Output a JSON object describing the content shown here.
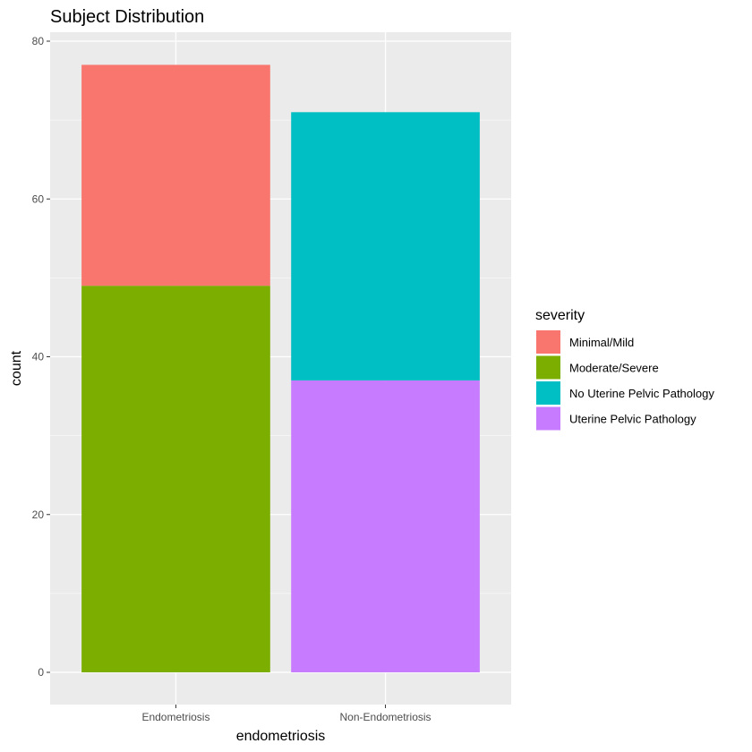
{
  "chart_data": {
    "type": "bar",
    "stacked": true,
    "title": "Subject Distribution",
    "xlabel": "endometriosis",
    "ylabel": "count",
    "categories": [
      "Endometriosis",
      "Non-Endometriosis"
    ],
    "ylim": [
      0,
      80
    ],
    "yticks": [
      0,
      20,
      40,
      60,
      80
    ],
    "grid": true,
    "legend": {
      "title": "severity",
      "placement": "right",
      "entries": [
        "Minimal/Mild",
        "Moderate/Severe",
        "No Uterine Pelvic Pathology",
        "Uterine Pelvic Pathology"
      ]
    },
    "series": [
      {
        "name": "Minimal/Mild",
        "color": "#F8766D",
        "values": [
          28,
          0
        ]
      },
      {
        "name": "Moderate/Severe",
        "color": "#7CAE00",
        "values": [
          49,
          0
        ]
      },
      {
        "name": "No Uterine Pelvic Pathology",
        "color": "#00BFC4",
        "values": [
          0,
          34
        ]
      },
      {
        "name": "Uterine Pelvic Pathology",
        "color": "#C77CFF",
        "values": [
          0,
          37
        ]
      }
    ],
    "stack_order_bottom_to_top": [
      "Moderate/Severe",
      "Minimal/Mild",
      "Uterine Pelvic Pathology",
      "No Uterine Pelvic Pathology"
    ],
    "panel_background": "#EBEBEB",
    "grid_color": "#FFFFFF"
  }
}
